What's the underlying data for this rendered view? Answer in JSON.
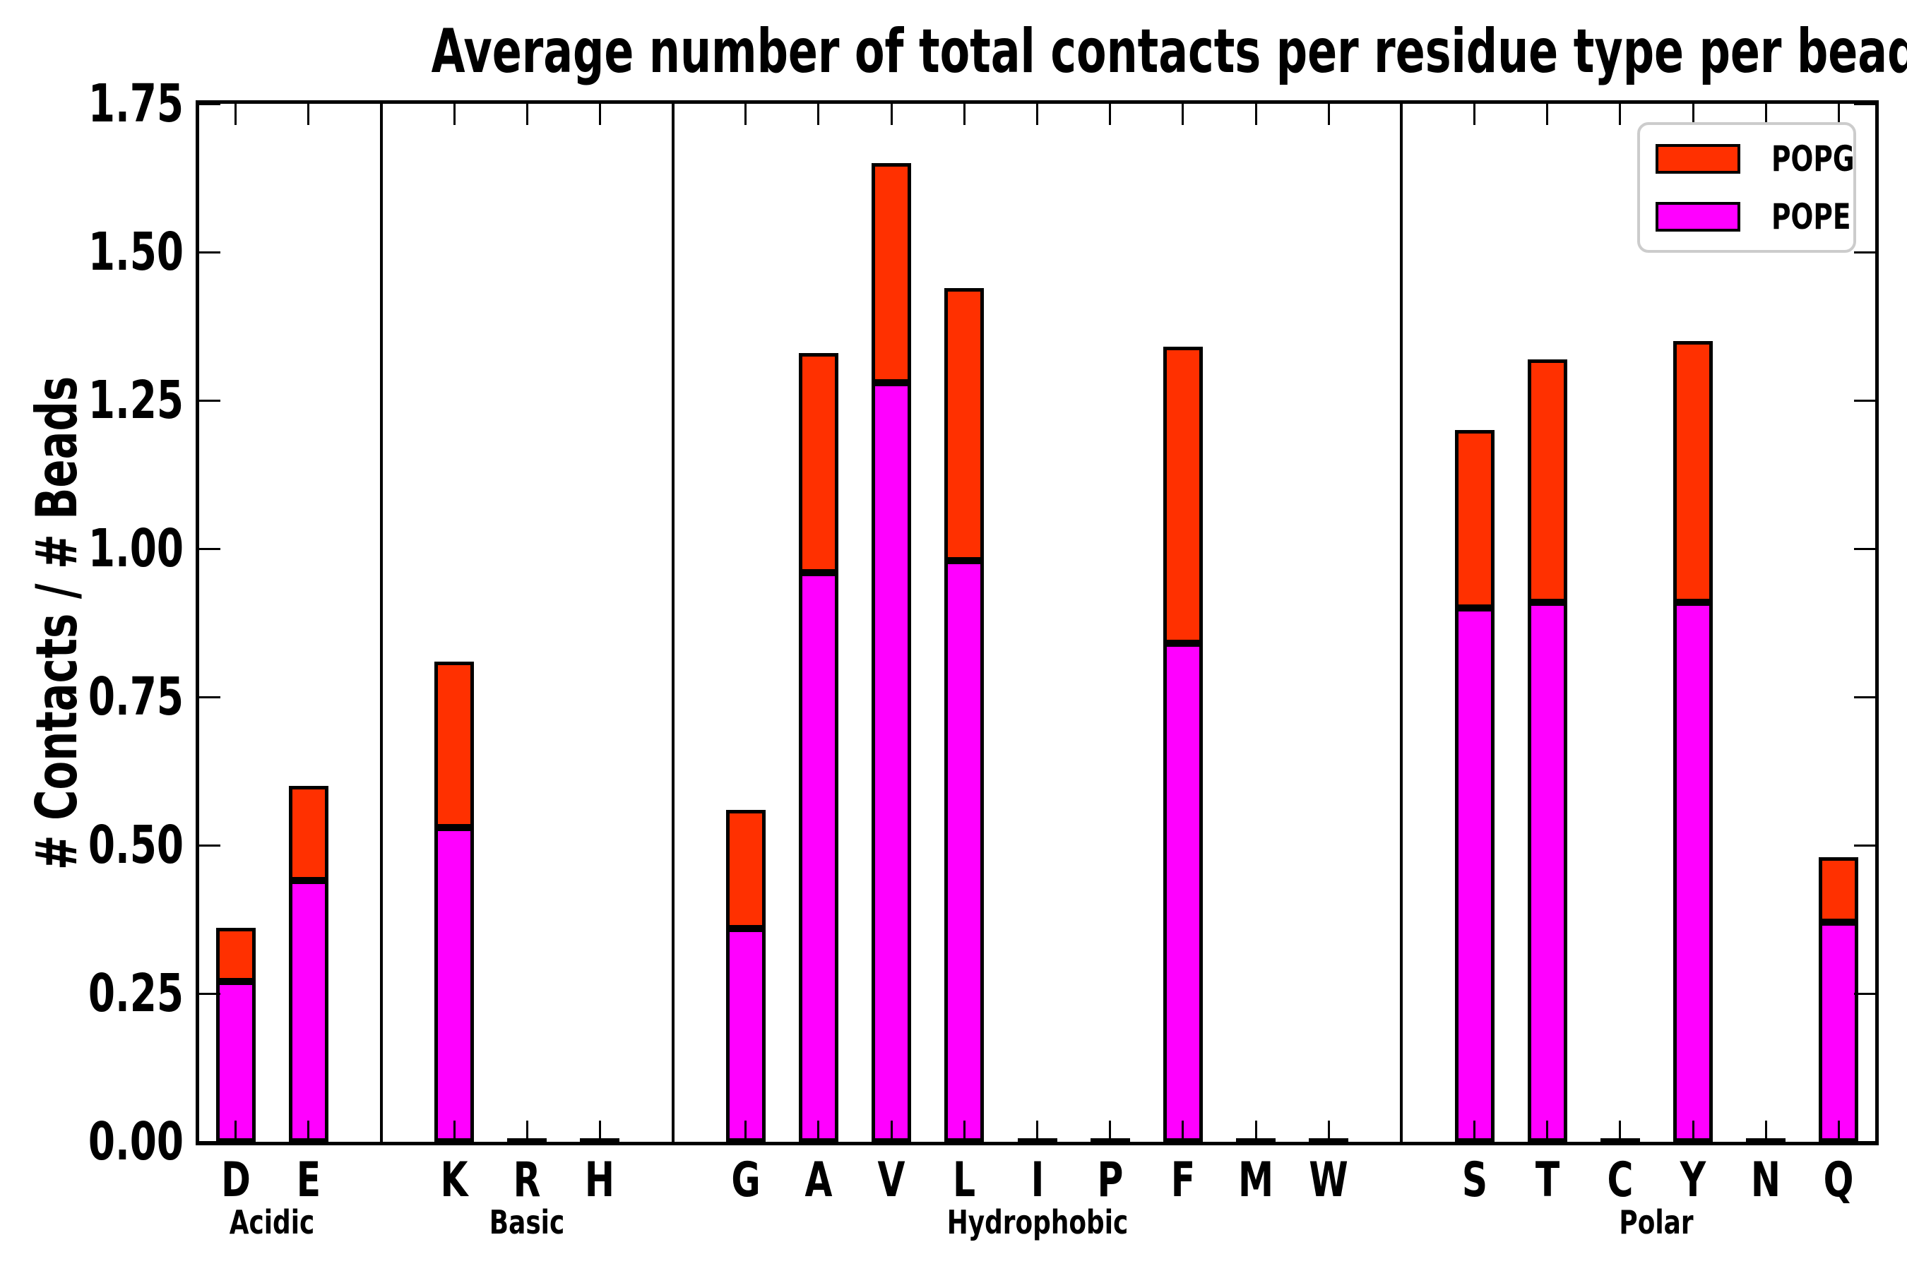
{
  "title": "Average number of total contacts per residue type per bead",
  "ylabel": "# Contacts / # Beads",
  "legend": {
    "popg_label": "POPG",
    "pope_label": "POPE"
  },
  "colors": {
    "popg": "#FF3000",
    "pope": "#FF00FF",
    "bar_edge": "#000000",
    "axis": "#000000",
    "legend_border": "#CCCCCC"
  },
  "chart_data": {
    "type": "bar",
    "stacked": true,
    "title": "Average number of total contacts per residue type per bead",
    "xlabel": "",
    "ylabel": "# Contacts / # Beads",
    "ylim": [
      0,
      1.75
    ],
    "ytick_step": 0.25,
    "yticks": [
      "0.00",
      "0.25",
      "0.50",
      "0.75",
      "1.00",
      "1.25",
      "1.50",
      "1.75"
    ],
    "grid": false,
    "legend_position": "upper right",
    "categories": [
      "D",
      "E",
      "K",
      "R",
      "H",
      "G",
      "A",
      "V",
      "L",
      "I",
      "P",
      "F",
      "M",
      "W",
      "S",
      "T",
      "C",
      "Y",
      "N",
      "Q"
    ],
    "groups": [
      {
        "label": "Acidic",
        "residues": [
          "D",
          "E"
        ]
      },
      {
        "label": "Basic",
        "residues": [
          "K",
          "R",
          "H"
        ]
      },
      {
        "label": "Hydrophobic",
        "residues": [
          "G",
          "A",
          "V",
          "L",
          "I",
          "P",
          "F",
          "M",
          "W"
        ]
      },
      {
        "label": "Polar",
        "residues": [
          "S",
          "T",
          "C",
          "Y",
          "N",
          "Q"
        ]
      }
    ],
    "series": [
      {
        "name": "POPE",
        "color": "#FF00FF",
        "values": [
          0.27,
          0.44,
          0.53,
          0,
          0,
          0.36,
          0.96,
          1.28,
          0.98,
          0,
          0,
          0.84,
          0,
          0,
          0.9,
          0.91,
          0,
          0.91,
          0,
          0.37
        ]
      },
      {
        "name": "POPG",
        "color": "#FF3000",
        "values": [
          0.09,
          0.16,
          0.28,
          0,
          0,
          0.2,
          0.37,
          0.37,
          0.46,
          0,
          0,
          0.5,
          0,
          0,
          0.3,
          0.41,
          0,
          0.44,
          0,
          0.11
        ]
      }
    ],
    "totals": [
      0.36,
      0.6,
      0.81,
      0,
      0,
      0.56,
      1.33,
      1.65,
      1.44,
      0,
      0,
      1.34,
      0,
      0,
      1.2,
      1.32,
      0,
      1.35,
      0,
      0.48
    ]
  }
}
